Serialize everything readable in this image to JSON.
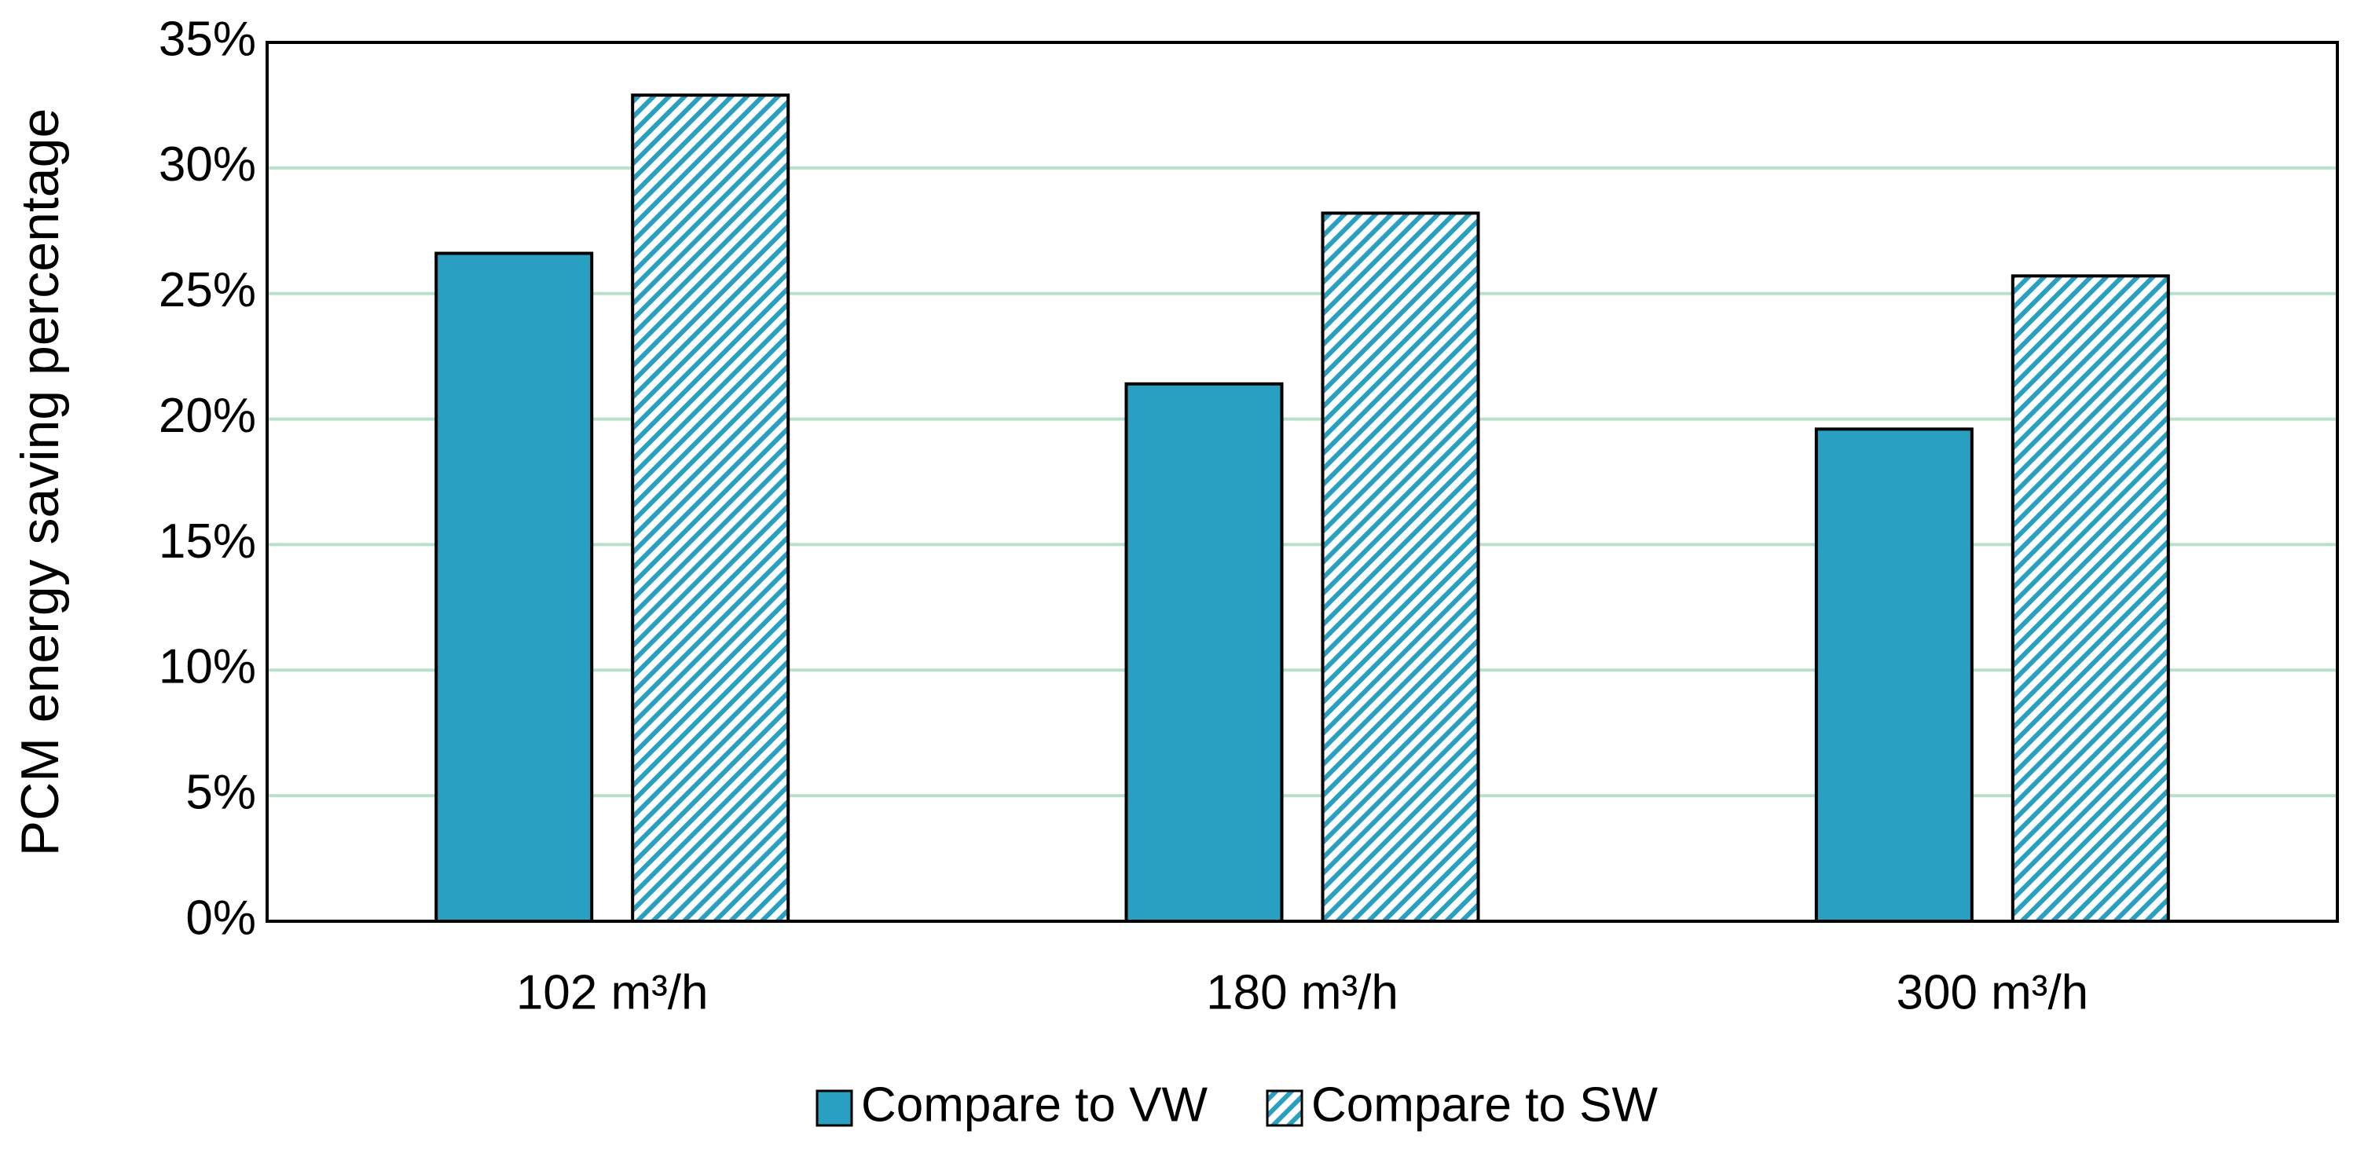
{
  "chart_data": {
    "type": "bar",
    "y_label": "PCM energy saving percentage",
    "categories": [
      "102 m³/h",
      "180 m³/h",
      "300 m³/h"
    ],
    "series": [
      {
        "name": "Compare to VW",
        "color": "#29a0c1",
        "pattern": "solid",
        "values": [
          26.6,
          21.4,
          19.6
        ]
      },
      {
        "name": "Compare to SW",
        "color": "#29a0c1",
        "pattern": "hatch",
        "values": [
          32.9,
          28.2,
          25.7
        ]
      }
    ],
    "ylim": [
      0,
      35
    ],
    "yticks": [
      {
        "value": 0,
        "label": "0%"
      },
      {
        "value": 5,
        "label": "5%"
      },
      {
        "value": 10,
        "label": "10%"
      },
      {
        "value": 15,
        "label": "15%"
      },
      {
        "value": 20,
        "label": "20%"
      },
      {
        "value": 25,
        "label": "25%"
      },
      {
        "value": 30,
        "label": "30%"
      },
      {
        "value": 35,
        "label": "35%"
      }
    ],
    "grid": true,
    "grid_color": "#b9e0c8",
    "legend": "bottom"
  }
}
